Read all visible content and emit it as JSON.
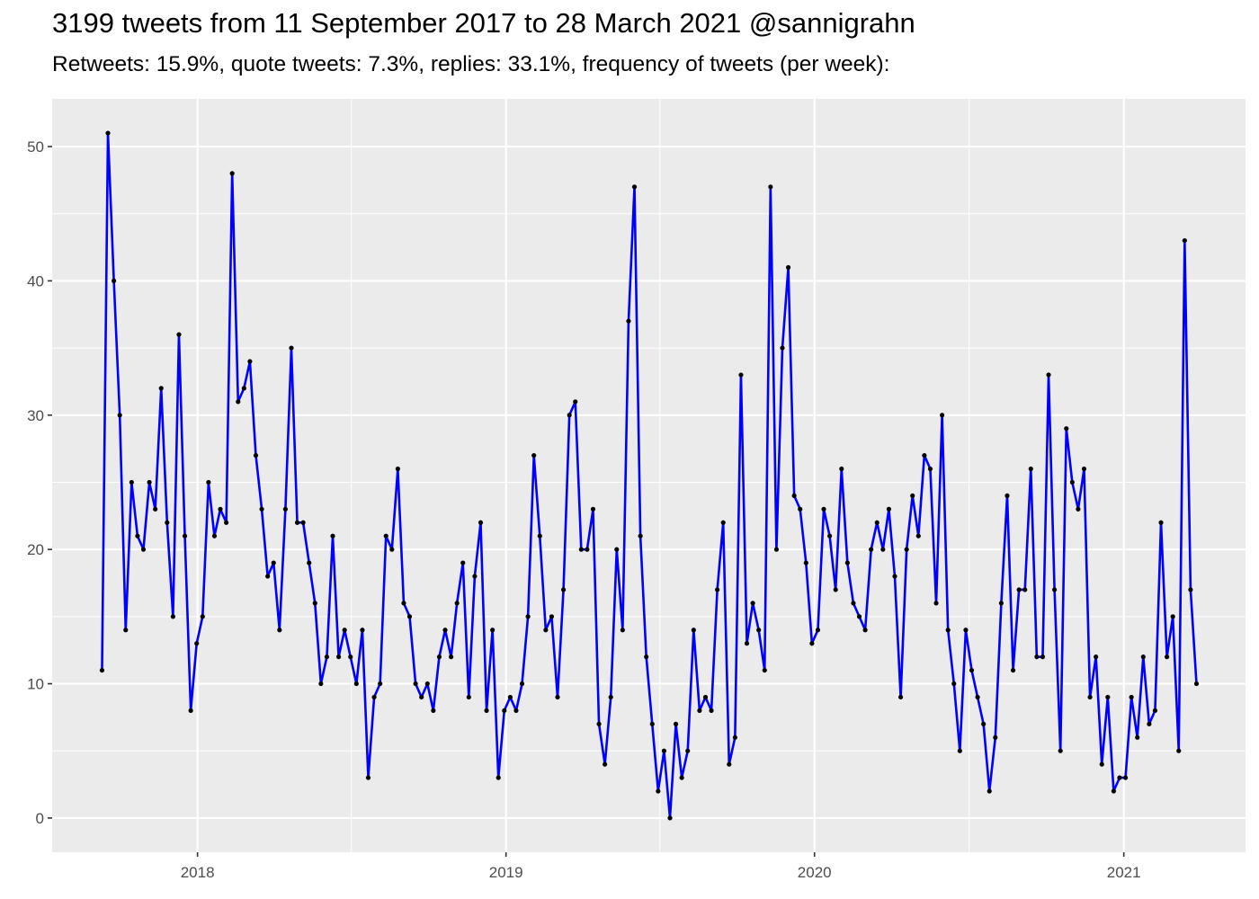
{
  "header": {
    "title": "3199 tweets from 11 September 2017 to 28 March 2021 @sannigrahn",
    "subtitle": "Retweets: 15.9%, quote tweets: 7.3%, replies: 33.1%, frequency of tweets (per week):"
  },
  "colors": {
    "panel_background": "#ebebeb",
    "grid": "#ffffff",
    "line": "#0000ff",
    "point": "#000000",
    "tick_text": "#4d4d4d"
  },
  "chart_data": {
    "type": "line",
    "title": "3199 tweets from 11 September 2017 to 28 March 2021 @sannigrahn",
    "subtitle": "Retweets: 15.9%, quote tweets: 7.3%, replies: 33.1%, frequency of tweets (per week):",
    "xlabel": "",
    "ylabel": "",
    "x_axis": {
      "type": "date",
      "tick_labels": [
        "2018",
        "2019",
        "2020",
        "2021"
      ],
      "range": [
        "2017-07-13",
        "2021-05-25"
      ]
    },
    "y_axis": {
      "tick_labels": [
        "0",
        "10",
        "20",
        "30",
        "40",
        "50"
      ],
      "ylim": [
        -2.55,
        53.55
      ]
    },
    "grid": true,
    "legend": "none",
    "series": [
      {
        "x": [
          "2017-09-10",
          "2017-09-17",
          "2017-09-24",
          "2017-10-01",
          "2017-10-08",
          "2017-10-15",
          "2017-10-22",
          "2017-10-29",
          "2017-11-05",
          "2017-11-12",
          "2017-11-19",
          "2017-11-26",
          "2017-12-03",
          "2017-12-10",
          "2017-12-17",
          "2017-12-24",
          "2017-12-31",
          "2018-01-07",
          "2018-01-14",
          "2018-01-21",
          "2018-01-28",
          "2018-02-04",
          "2018-02-11",
          "2018-02-18",
          "2018-02-25",
          "2018-03-04",
          "2018-03-11",
          "2018-03-18",
          "2018-03-25",
          "2018-04-01",
          "2018-04-08",
          "2018-04-15",
          "2018-04-22",
          "2018-04-29",
          "2018-05-06",
          "2018-05-13",
          "2018-05-20",
          "2018-05-27",
          "2018-06-03",
          "2018-06-10",
          "2018-06-17",
          "2018-06-24",
          "2018-07-01",
          "2018-07-08",
          "2018-07-15",
          "2018-07-22",
          "2018-07-29",
          "2018-08-05",
          "2018-08-12",
          "2018-08-19",
          "2018-08-26",
          "2018-09-02",
          "2018-09-09",
          "2018-09-16",
          "2018-09-23",
          "2018-09-30",
          "2018-10-07",
          "2018-10-14",
          "2018-10-21",
          "2018-10-28",
          "2018-11-04",
          "2018-11-11",
          "2018-11-18",
          "2018-11-25",
          "2018-12-02",
          "2018-12-09",
          "2018-12-16",
          "2018-12-23",
          "2018-12-30",
          "2019-01-06",
          "2019-01-13",
          "2019-01-20",
          "2019-01-27",
          "2019-02-03",
          "2019-02-10",
          "2019-02-17",
          "2019-02-24",
          "2019-03-03",
          "2019-03-10",
          "2019-03-17",
          "2019-03-24",
          "2019-03-31",
          "2019-04-07",
          "2019-04-14",
          "2019-04-21",
          "2019-04-28",
          "2019-05-05",
          "2019-05-12",
          "2019-05-19",
          "2019-05-26",
          "2019-06-02",
          "2019-06-09",
          "2019-06-16",
          "2019-06-23",
          "2019-06-30",
          "2019-07-07",
          "2019-07-14",
          "2019-07-21",
          "2019-07-28",
          "2019-08-04",
          "2019-08-11",
          "2019-08-18",
          "2019-08-25",
          "2019-09-01",
          "2019-09-08",
          "2019-09-15",
          "2019-09-22",
          "2019-09-29",
          "2019-10-06",
          "2019-10-13",
          "2019-10-20",
          "2019-10-27",
          "2019-11-03",
          "2019-11-10",
          "2019-11-17",
          "2019-11-24",
          "2019-12-01",
          "2019-12-08",
          "2019-12-15",
          "2019-12-22",
          "2019-12-29",
          "2020-01-05",
          "2020-01-12",
          "2020-01-19",
          "2020-01-26",
          "2020-02-02",
          "2020-02-09",
          "2020-02-16",
          "2020-02-23",
          "2020-03-01",
          "2020-03-08",
          "2020-03-15",
          "2020-03-22",
          "2020-03-29",
          "2020-04-05",
          "2020-04-12",
          "2020-04-19",
          "2020-04-26",
          "2020-05-03",
          "2020-05-10",
          "2020-05-17",
          "2020-05-24",
          "2020-05-31",
          "2020-06-07",
          "2020-06-14",
          "2020-06-21",
          "2020-06-28",
          "2020-07-05",
          "2020-07-12",
          "2020-07-19",
          "2020-07-26",
          "2020-08-02",
          "2020-08-09",
          "2020-08-16",
          "2020-08-23",
          "2020-08-30",
          "2020-09-06",
          "2020-09-13",
          "2020-09-20",
          "2020-09-27",
          "2020-10-04",
          "2020-10-11",
          "2020-10-18",
          "2020-10-25",
          "2020-11-01",
          "2020-11-08",
          "2020-11-15",
          "2020-11-22",
          "2020-11-29",
          "2020-12-06",
          "2020-12-13",
          "2020-12-20",
          "2020-12-27",
          "2021-01-03",
          "2021-01-10",
          "2021-01-17",
          "2021-01-24",
          "2021-01-31",
          "2021-02-07",
          "2021-02-14",
          "2021-02-21",
          "2021-02-28",
          "2021-03-07",
          "2021-03-14",
          "2021-03-21",
          "2021-03-28"
        ],
        "values": [
          11,
          51,
          40,
          30,
          14,
          25,
          21,
          20,
          25,
          23,
          32,
          22,
          15,
          36,
          21,
          8,
          13,
          15,
          25,
          21,
          23,
          22,
          48,
          31,
          32,
          34,
          27,
          23,
          18,
          19,
          14,
          23,
          35,
          22,
          22,
          19,
          16,
          10,
          12,
          21,
          12,
          14,
          12,
          10,
          14,
          3,
          9,
          10,
          21,
          20,
          26,
          16,
          15,
          10,
          9,
          10,
          8,
          12,
          14,
          12,
          16,
          19,
          9,
          18,
          22,
          8,
          14,
          3,
          8,
          9,
          8,
          10,
          15,
          27,
          21,
          14,
          15,
          9,
          17,
          30,
          31,
          20,
          20,
          23,
          7,
          4,
          9,
          20,
          14,
          37,
          47,
          21,
          12,
          7,
          2,
          5,
          0,
          7,
          3,
          5,
          14,
          8,
          9,
          8,
          17,
          22,
          4,
          6,
          33,
          13,
          16,
          14,
          11,
          47,
          20,
          35,
          41,
          24,
          23,
          19,
          13,
          14,
          23,
          21,
          17,
          26,
          19,
          16,
          15,
          14,
          20,
          22,
          20,
          23,
          18,
          9,
          20,
          24,
          21,
          27,
          26,
          16,
          30,
          14,
          10,
          5,
          14,
          11,
          9,
          7,
          2,
          6,
          16,
          24,
          11,
          17,
          17,
          26,
          12,
          12,
          33,
          17,
          5,
          29,
          25,
          23,
          26,
          9,
          12,
          4,
          9,
          2,
          3,
          3,
          9,
          6,
          12,
          7,
          8,
          22,
          12,
          15,
          5,
          43,
          17,
          10
        ]
      }
    ]
  }
}
